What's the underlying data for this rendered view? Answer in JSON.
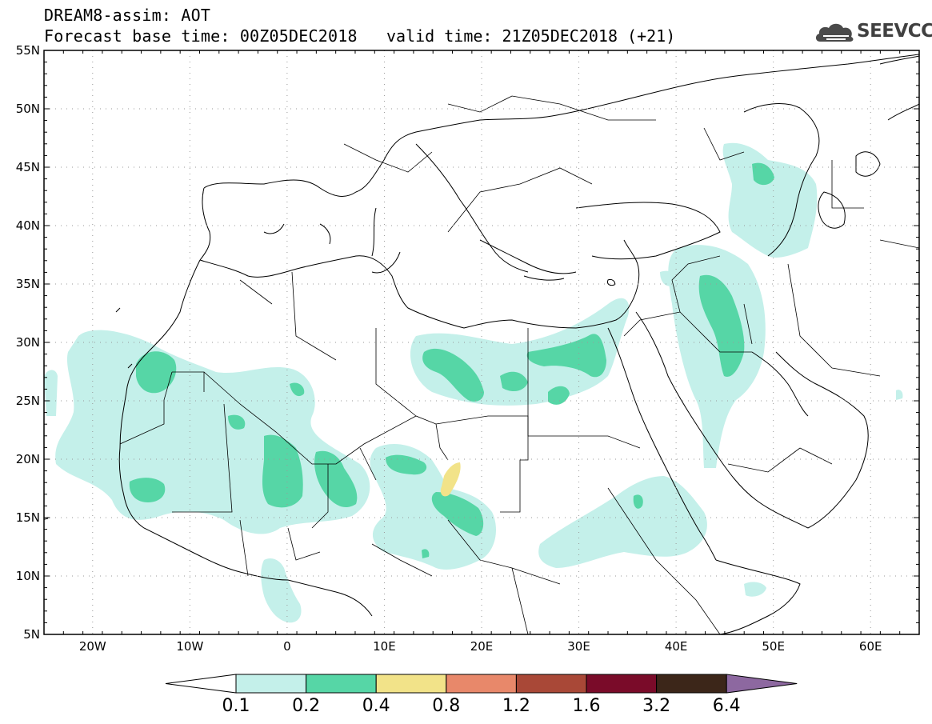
{
  "header": {
    "title": "DREAM8-assim: AOT",
    "base_time": "Forecast base time: 00Z05DEC2018",
    "valid_time": "valid time: 21Z05DEC2018 (+21)",
    "logo_text": "SEEVCCC",
    "logo_icon": "cloud-icon"
  },
  "map": {
    "lat_labels": [
      "55N",
      "50N",
      "45N",
      "40N",
      "35N",
      "30N",
      "25N",
      "20N",
      "15N",
      "10N",
      "5N"
    ],
    "lon_labels": [
      "20W",
      "10W",
      "0",
      "10E",
      "20E",
      "30E",
      "40E",
      "50E",
      "60E"
    ],
    "extent": {
      "lon_min": -25,
      "lon_max": 65,
      "lat_min": 5,
      "lat_max": 55
    }
  },
  "colorbar": {
    "labels": [
      "0.1",
      "0.2",
      "0.4",
      "0.8",
      "1.2",
      "1.6",
      "3.2",
      "6.4"
    ],
    "colors": [
      "#ffffff",
      "#c4f0ea",
      "#56d6a6",
      "#f2e389",
      "#e8886a",
      "#a94837",
      "#7a0b29",
      "#3c2619",
      "#8d68a0"
    ]
  }
}
